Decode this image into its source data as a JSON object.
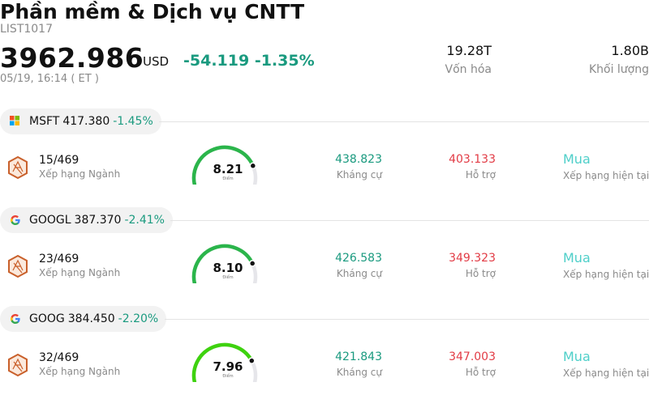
{
  "header": {
    "title": "Phần mềm & Dịch vụ CNTT",
    "code": "LIST1017",
    "price": "3962.986",
    "currency": "USD",
    "change": "-54.119 -1.35%",
    "time": "05/19, 16:14  ( ET )",
    "market_cap_value": "19.28T",
    "market_cap_label": "Vốn hóa",
    "volume_value": "1.80B",
    "volume_label": "Khối lượng"
  },
  "colors": {
    "positive_text": "#1a9a7f",
    "negative_text": "#e23b45",
    "rating_text": "#4ecfc9"
  },
  "stocks": [
    {
      "icon": "microsoft-logo-icon",
      "symbol": "MSFT",
      "price": "417.380",
      "change": "-1.45%",
      "rank": "15/469",
      "rank_label": "Xếp hạng Ngành",
      "score": "8.21",
      "score_label": "Điểm",
      "score_fraction": 0.821,
      "resistance": "438.823",
      "resistance_label": "Kháng cự",
      "support": "403.133",
      "support_label": "Hỗ trợ",
      "rating": "Mua",
      "rating_label": "Xếp hạng hiện tại"
    },
    {
      "icon": "google-logo-icon",
      "symbol": "GOOGL",
      "price": "387.370",
      "change": "-2.41%",
      "rank": "23/469",
      "rank_label": "Xếp hạng Ngành",
      "score": "8.10",
      "score_label": "Điểm",
      "score_fraction": 0.81,
      "resistance": "426.583",
      "resistance_label": "Kháng cự",
      "support": "349.323",
      "support_label": "Hỗ trợ",
      "rating": "Mua",
      "rating_label": "Xếp hạng hiện tại"
    },
    {
      "icon": "google-logo-icon",
      "symbol": "GOOG",
      "price": "384.450",
      "change": "-2.20%",
      "rank": "32/469",
      "rank_label": "Xếp hạng Ngành",
      "score": "7.96",
      "score_label": "Điểm",
      "score_fraction": 0.796,
      "resistance": "421.843",
      "resistance_label": "Kháng cự",
      "support": "347.003",
      "support_label": "Hỗ trợ",
      "rating": "Mua",
      "rating_label": "Xếp hạng hiện tại"
    }
  ]
}
